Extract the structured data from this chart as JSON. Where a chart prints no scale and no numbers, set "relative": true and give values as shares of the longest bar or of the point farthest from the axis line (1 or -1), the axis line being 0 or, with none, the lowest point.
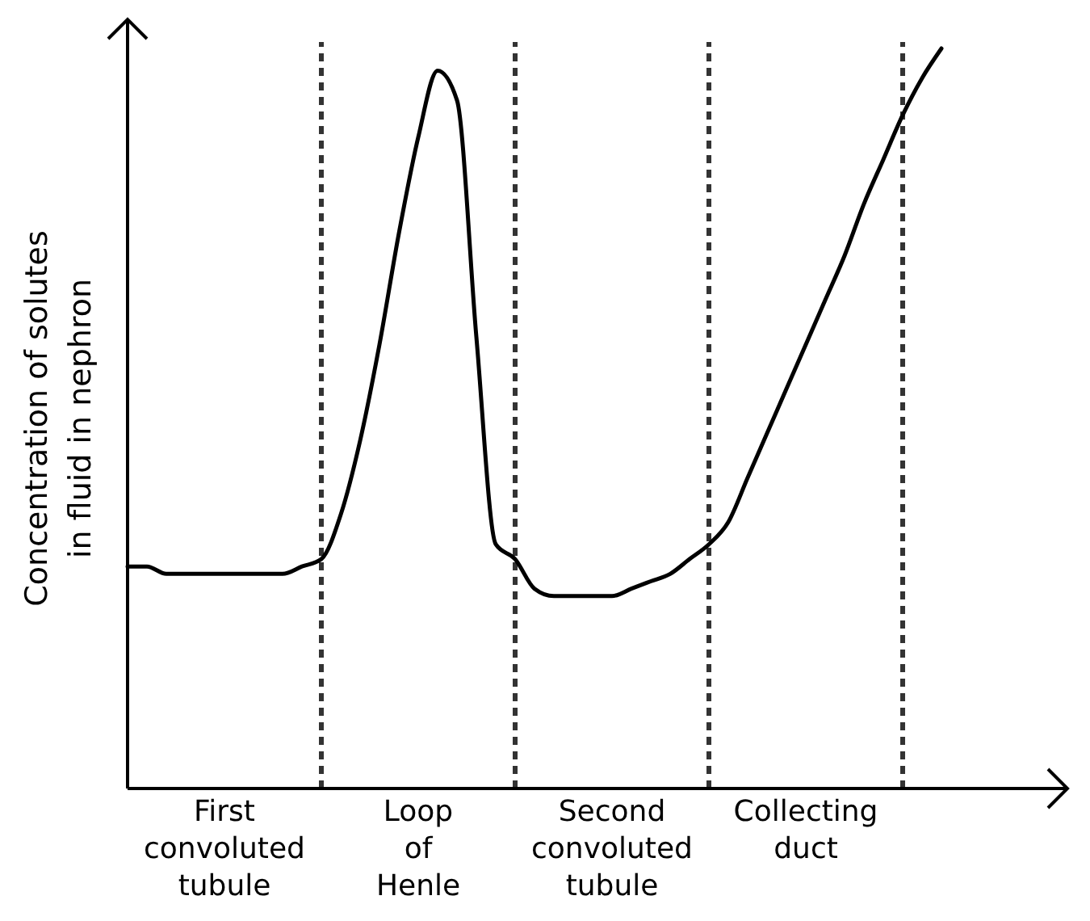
{
  "chart_data": {
    "type": "line",
    "relative": true,
    "ylabel": "Concentration of solutes\nin fluid in nephron",
    "categories": [
      null,
      null,
      null,
      null,
      null,
      null,
      null,
      null,
      null,
      null,
      null,
      null,
      null,
      null,
      null,
      null,
      null,
      null,
      null,
      null,
      null,
      null,
      null,
      null,
      null,
      null,
      null,
      null,
      null,
      null,
      null,
      null,
      null,
      null,
      null,
      null,
      null,
      null,
      null,
      null,
      null,
      null,
      null
    ],
    "series": [
      {
        "color": "#000000",
        "values": [
          0.3,
          0.3,
          0.29,
          0.29,
          0.29,
          0.29,
          0.29,
          0.29,
          0.29,
          0.3,
          0.31,
          0.37,
          0.47,
          0.6,
          0.75,
          0.88,
          0.97,
          0.93,
          0.61,
          0.33,
          0.31,
          0.27,
          0.26,
          0.26,
          0.26,
          0.26,
          0.27,
          0.28,
          0.29,
          0.31,
          0.33,
          0.36,
          0.42,
          0.48,
          0.54,
          0.6,
          0.66,
          0.72,
          0.79,
          0.85,
          0.91,
          0.96,
          1.0
        ]
      }
    ],
    "grid": "x",
    "annotations": [
      "First convoluted tubule",
      "Loop of Henle",
      "Second convoluted tubule",
      "Collecting duct"
    ],
    "marker": "none",
    "line_style": "solid"
  }
}
